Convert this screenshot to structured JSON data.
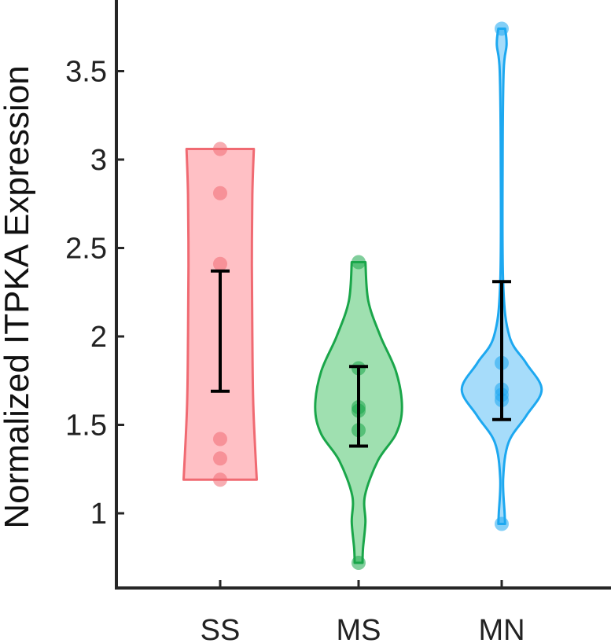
{
  "chart_data": {
    "type": "violin",
    "ylabel": "Normalized ITPKA Expression",
    "ylim": [
      0.55,
      3.9
    ],
    "yticks": [
      1,
      1.5,
      2,
      2.5,
      3,
      3.5
    ],
    "ytick_labels": [
      "1",
      "1.5",
      "2",
      "2.5",
      "3",
      "3.5"
    ],
    "categories": [
      "SS",
      "MS",
      "MN"
    ],
    "grid": false,
    "groups": [
      {
        "category": "SS",
        "color": "#f06a72",
        "fill": "#ffc0c5",
        "points": [
          3.06,
          2.81,
          2.41,
          1.42,
          1.31,
          1.19
        ],
        "error_bar": [
          1.69,
          2.37
        ],
        "violin": [
          [
            1.19,
            0.75
          ],
          [
            1.6,
            0.68
          ],
          [
            2.0,
            0.66
          ],
          [
            2.4,
            0.65
          ],
          [
            2.8,
            0.66
          ],
          [
            3.06,
            0.69
          ]
        ]
      },
      {
        "category": "MS",
        "color": "#1aa64a",
        "fill": "#9fe0b0",
        "points": [
          2.42,
          1.82,
          1.6,
          1.58,
          1.47,
          0.72
        ],
        "error_bar": [
          1.38,
          1.83
        ],
        "violin": [
          [
            0.72,
            0.08
          ],
          [
            0.8,
            0.09
          ],
          [
            0.95,
            0.14
          ],
          [
            1.1,
            0.13
          ],
          [
            1.3,
            0.4
          ],
          [
            1.45,
            0.77
          ],
          [
            1.6,
            0.89
          ],
          [
            1.8,
            0.77
          ],
          [
            2.0,
            0.45
          ],
          [
            2.2,
            0.2
          ],
          [
            2.42,
            0.14
          ]
        ]
      },
      {
        "category": "MN",
        "color": "#1da8f0",
        "fill": "#a6dcfa",
        "points": [
          3.74,
          1.85,
          1.7,
          1.67,
          1.64,
          0.94
        ],
        "error_bar": [
          1.53,
          2.31
        ],
        "violin": [
          [
            0.94,
            0.07
          ],
          [
            1.0,
            0.06
          ],
          [
            1.2,
            0.03
          ],
          [
            1.4,
            0.14
          ],
          [
            1.55,
            0.5
          ],
          [
            1.7,
            0.82
          ],
          [
            1.85,
            0.5
          ],
          [
            2.0,
            0.16
          ],
          [
            2.3,
            0.03
          ],
          [
            3.0,
            0.02
          ],
          [
            3.5,
            0.04
          ],
          [
            3.65,
            0.1
          ],
          [
            3.74,
            0.07
          ]
        ]
      }
    ]
  }
}
